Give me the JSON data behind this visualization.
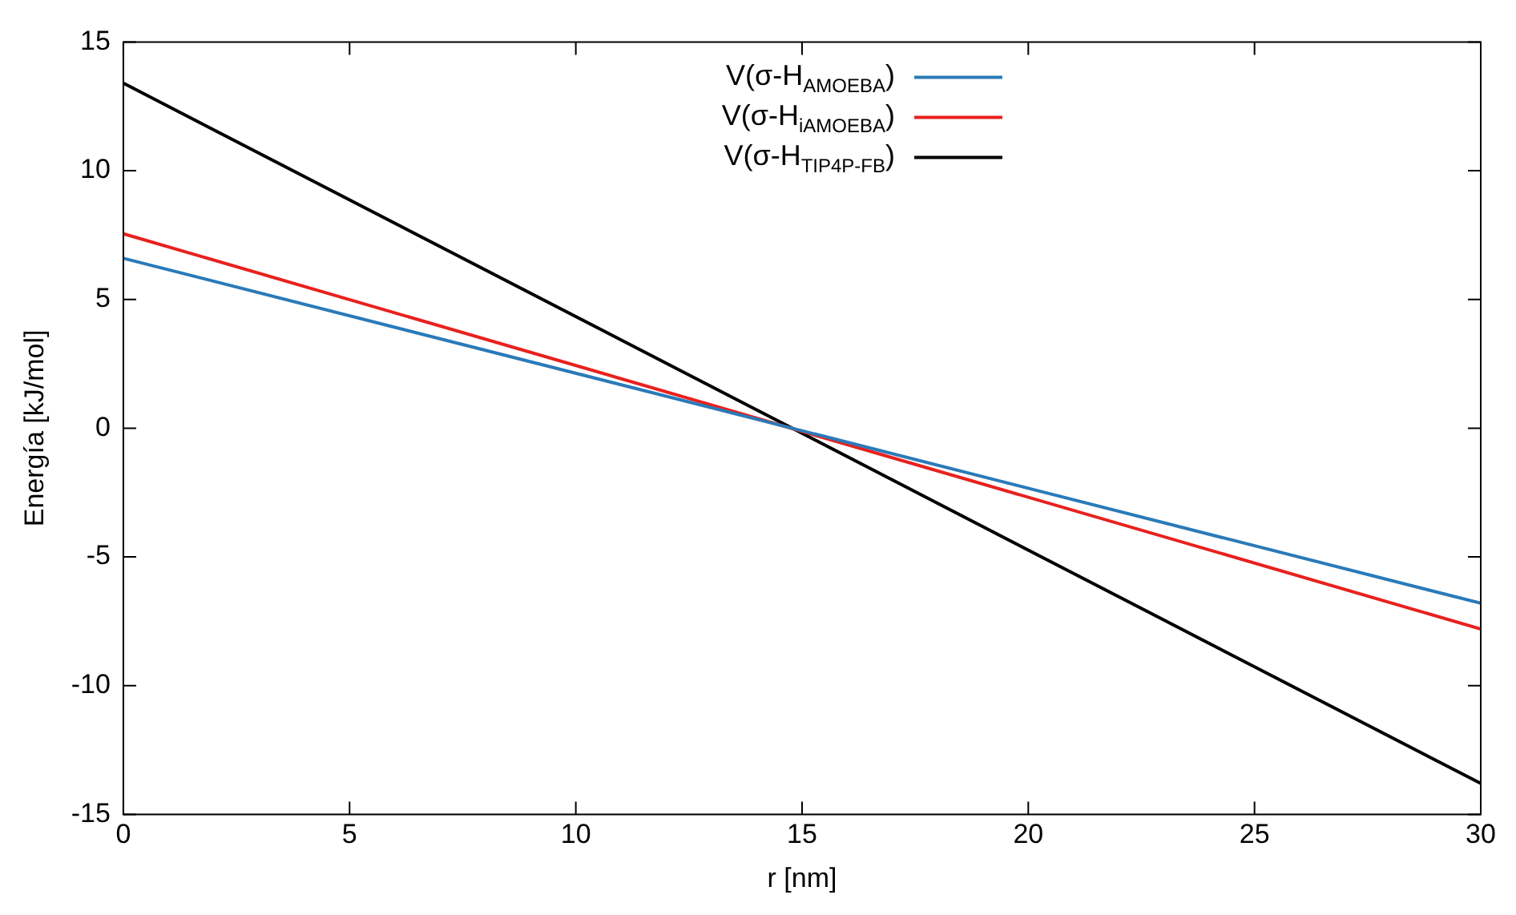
{
  "chart_data": {
    "type": "line",
    "xlabel": "r [nm]",
    "ylabel": "Energía [kJ/mol]",
    "x": [
      0,
      30
    ],
    "series": [
      {
        "name": "V(σ-H$_{AMOEBA}$)",
        "color": "#2a7ab8",
        "values": [
          6.6,
          -6.8
        ]
      },
      {
        "name": "V(σ-H$_{iAMOEBA}$)",
        "color": "#e8211e",
        "values": [
          7.55,
          -7.8
        ]
      },
      {
        "name": "V(σ-H$_{TIP4P-FB}$)",
        "color": "#000000",
        "values": [
          13.4,
          -13.8
        ]
      }
    ],
    "xlim": [
      0,
      30
    ],
    "xticks": [
      0,
      5,
      10,
      15,
      20,
      25,
      30
    ],
    "ylim": [
      -15,
      15
    ],
    "yticks": [
      -15,
      -10,
      -5,
      0,
      5,
      10,
      15
    ],
    "grid": false,
    "legend": "top",
    "marker": "none",
    "line_style": "solid"
  }
}
